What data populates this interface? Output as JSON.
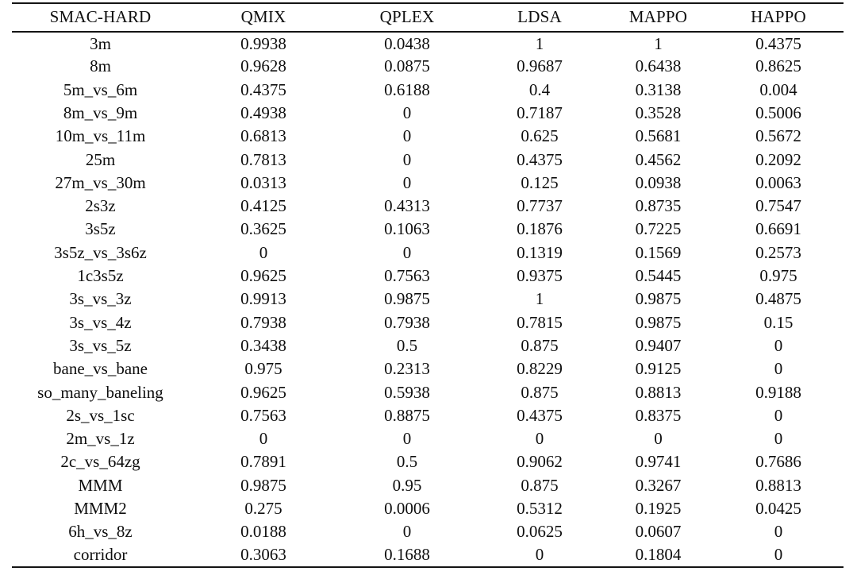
{
  "table": {
    "columns": [
      "SMAC-HARD",
      "QMIX",
      "QPLEX",
      "LDSA",
      "MAPPO",
      "HAPPO"
    ],
    "rows": [
      [
        "3m",
        "0.9938",
        "0.0438",
        "1",
        "1",
        "0.4375"
      ],
      [
        "8m",
        "0.9628",
        "0.0875",
        "0.9687",
        "0.6438",
        "0.8625"
      ],
      [
        "5m_vs_6m",
        "0.4375",
        "0.6188",
        "0.4",
        "0.3138",
        "0.004"
      ],
      [
        "8m_vs_9m",
        "0.4938",
        "0",
        "0.7187",
        "0.3528",
        "0.5006"
      ],
      [
        "10m_vs_11m",
        "0.6813",
        "0",
        "0.625",
        "0.5681",
        "0.5672"
      ],
      [
        "25m",
        "0.7813",
        "0",
        "0.4375",
        "0.4562",
        "0.2092"
      ],
      [
        "27m_vs_30m",
        "0.0313",
        "0",
        "0.125",
        "0.0938",
        "0.0063"
      ],
      [
        "2s3z",
        "0.4125",
        "0.4313",
        "0.7737",
        "0.8735",
        "0.7547"
      ],
      [
        "3s5z",
        "0.3625",
        "0.1063",
        "0.1876",
        "0.7225",
        "0.6691"
      ],
      [
        "3s5z_vs_3s6z",
        "0",
        "0",
        "0.1319",
        "0.1569",
        "0.2573"
      ],
      [
        "1c3s5z",
        "0.9625",
        "0.7563",
        "0.9375",
        "0.5445",
        "0.975"
      ],
      [
        "3s_vs_3z",
        "0.9913",
        "0.9875",
        "1",
        "0.9875",
        "0.4875"
      ],
      [
        "3s_vs_4z",
        "0.7938",
        "0.7938",
        "0.7815",
        "0.9875",
        "0.15"
      ],
      [
        "3s_vs_5z",
        "0.3438",
        "0.5",
        "0.875",
        "0.9407",
        "0"
      ],
      [
        "bane_vs_bane",
        "0.975",
        "0.2313",
        "0.8229",
        "0.9125",
        "0"
      ],
      [
        "so_many_baneling",
        "0.9625",
        "0.5938",
        "0.875",
        "0.8813",
        "0.9188"
      ],
      [
        "2s_vs_1sc",
        "0.7563",
        "0.8875",
        "0.4375",
        "0.8375",
        "0"
      ],
      [
        "2m_vs_1z",
        "0",
        "0",
        "0",
        "0",
        "0"
      ],
      [
        "2c_vs_64zg",
        "0.7891",
        "0.5",
        "0.9062",
        "0.9741",
        "0.7686"
      ],
      [
        "MMM",
        "0.9875",
        "0.95",
        "0.875",
        "0.3267",
        "0.8813"
      ],
      [
        "MMM2",
        "0.275",
        "0.0006",
        "0.5312",
        "0.1925",
        "0.0425"
      ],
      [
        "6h_vs_8z",
        "0.0188",
        "0",
        "0.0625",
        "0.0607",
        "0"
      ],
      [
        "corridor",
        "0.3063",
        "0.1688",
        "0",
        "0.1804",
        "0"
      ]
    ]
  },
  "colors": {
    "text": "#0e0e0e",
    "rule": "#141414",
    "background": "#ffffff"
  }
}
